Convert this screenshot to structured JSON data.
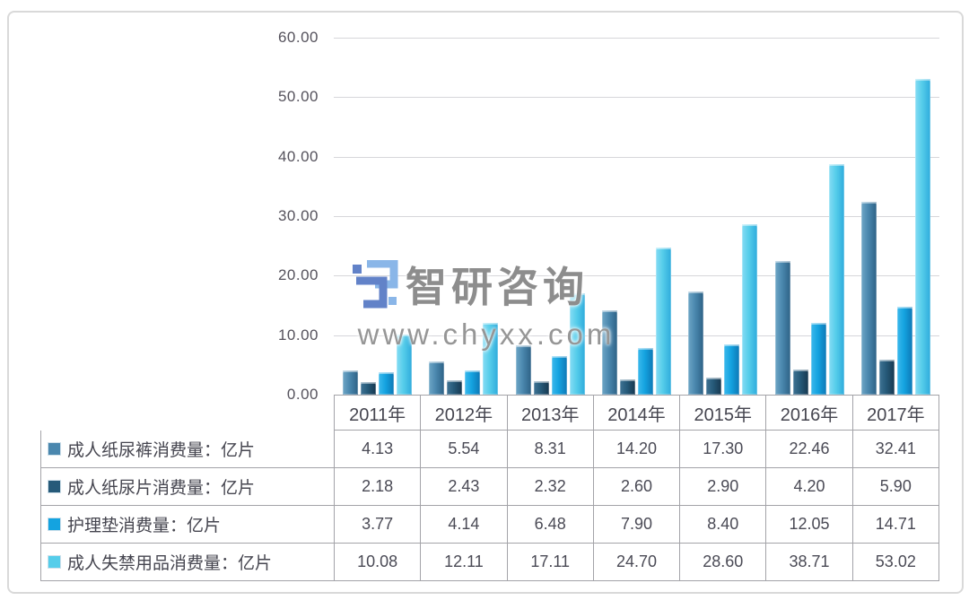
{
  "watermark": {
    "brand": "智研咨询",
    "url": "www.chyxx.com",
    "logo_colors": {
      "dark_blue": "#6282c8",
      "light_blue": "#8ab6e8"
    }
  },
  "chart_data": {
    "type": "bar",
    "title": "",
    "xlabel": "",
    "ylabel": "",
    "categories": [
      "2011年",
      "2012年",
      "2013年",
      "2014年",
      "2015年",
      "2016年",
      "2017年"
    ],
    "series": [
      {
        "name": "成人纸尿裤消费量：亿片",
        "values": [
          4.13,
          5.54,
          8.31,
          14.2,
          17.3,
          22.46,
          32.41
        ],
        "color": "#4a87ae",
        "gradient": [
          "#6ea6c6",
          "#2e6286"
        ]
      },
      {
        "name": "成人纸尿片消费量：亿片",
        "values": [
          2.18,
          2.43,
          2.32,
          2.6,
          2.9,
          4.2,
          5.9
        ],
        "color": "#265a79",
        "gradient": [
          "#3f7394",
          "#173850"
        ]
      },
      {
        "name": "护理垫消费量：亿片",
        "values": [
          3.77,
          4.14,
          6.48,
          7.9,
          8.4,
          12.05,
          14.71
        ],
        "color": "#14a3e0",
        "gradient": [
          "#3cb9ec",
          "#0d78b6"
        ]
      },
      {
        "name": "成人失禁用品消费量：亿片",
        "values": [
          10.08,
          12.11,
          17.11,
          24.7,
          28.6,
          38.71,
          53.02
        ],
        "color": "#55cdea",
        "gradient": [
          "#86dcf4",
          "#2fabdc"
        ]
      }
    ],
    "ylim": [
      0,
      60
    ],
    "ytick_step": 10,
    "yticks": [
      {
        "value": 60,
        "label": "60.00"
      },
      {
        "value": 50,
        "label": "50.00"
      },
      {
        "value": 40,
        "label": "40.00"
      },
      {
        "value": 30,
        "label": "30.00"
      },
      {
        "value": 20,
        "label": "20.00"
      },
      {
        "value": 10,
        "label": "10.00"
      },
      {
        "value": 0,
        "label": "0.00"
      }
    ],
    "grid": true,
    "legend_position": "table-left",
    "value_decimals": 2
  }
}
